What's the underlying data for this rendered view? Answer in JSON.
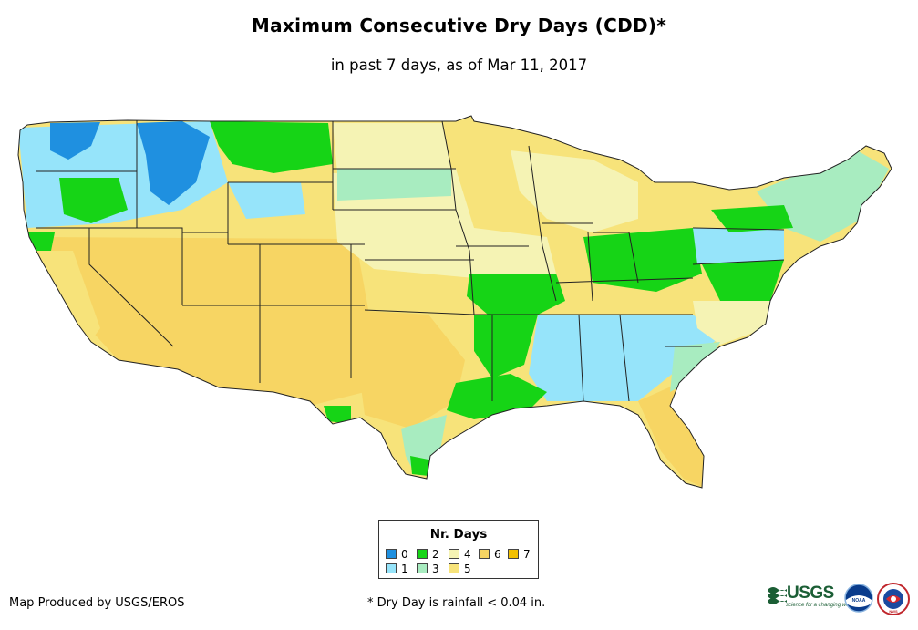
{
  "title": "Maximum Consecutive Dry Days (CDD)*",
  "subtitle": "in past 7 days, as of Mar 11, 2017",
  "legend": {
    "title": "Nr. Days",
    "items": [
      {
        "label": "0",
        "color": "#1f90e0"
      },
      {
        "label": "1",
        "color": "#96e4fa"
      },
      {
        "label": "2",
        "color": "#16d416"
      },
      {
        "label": "3",
        "color": "#a8ecc0"
      },
      {
        "label": "4",
        "color": "#f5f3b4"
      },
      {
        "label": "5",
        "color": "#f7e37a"
      },
      {
        "label": "6",
        "color": "#f7d563"
      },
      {
        "label": "7",
        "color": "#f2c000"
      }
    ]
  },
  "footer": {
    "producer": "Map Produced by USGS/EROS",
    "note": "* Dry Day is rainfall < 0.04 in."
  },
  "logos": {
    "usgs": "USGS",
    "usgs_tagline": "science for a changing world",
    "noaa": "NOAA",
    "nws": "NWS"
  }
}
